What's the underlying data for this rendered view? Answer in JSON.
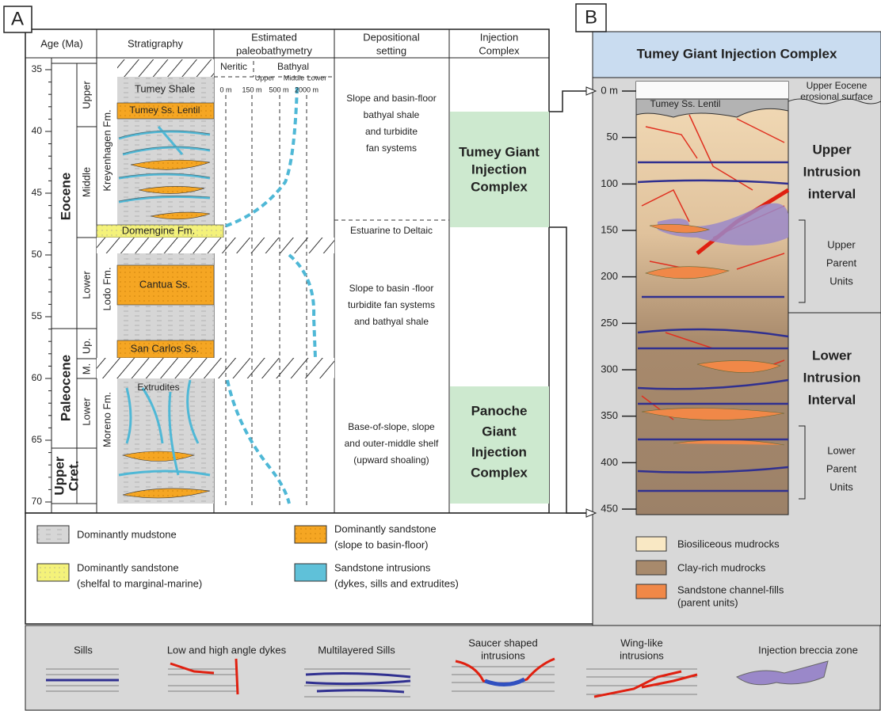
{
  "panel_a": {
    "label": "A",
    "headers": [
      [
        "Age (Ma)"
      ],
      [
        "Stratigraphy"
      ],
      [
        "Estimated",
        "paleobathymetry"
      ],
      [
        "Depositional",
        "setting"
      ],
      [
        "Injection",
        "Complex"
      ]
    ],
    "age_ticks": [
      35,
      40,
      45,
      50,
      55,
      60,
      65,
      70
    ],
    "epochs": [
      [
        "Eocene"
      ],
      [
        "Paleocene"
      ],
      [
        "Upper",
        "Cret."
      ]
    ],
    "sub_epochs": [
      "Upper",
      "Middle",
      "Lower",
      "Up.",
      "M.",
      "Lower"
    ],
    "formations": [
      "Kreyenhagen Fm.",
      "Lodo Fm.",
      "Moreno Fm."
    ],
    "units": [
      "Tumey Shale",
      "Tumey Ss. Lentil",
      "Domengine Fm.",
      "Cantua Ss.",
      "San Carlos Ss.",
      "Extrudites"
    ],
    "bathymetry": {
      "zones": [
        "Neritic",
        "Bathyal"
      ],
      "subzones": [
        "Upper",
        "Middle",
        "Lower"
      ],
      "depths": [
        "0 m",
        "150 m",
        "500 m",
        "2000 m"
      ]
    },
    "depositional": [
      [
        "Slope and basin-floor",
        "bathyal shale",
        "and turbidite",
        "fan systems"
      ],
      [
        "Estuarine to Deltaic"
      ],
      [
        "Slope to basin -floor",
        "turbidite fan systems",
        "and bathyal shale"
      ],
      [
        "Base-of-slope, slope",
        "and outer-middle shelf",
        "(upward shoaling)"
      ]
    ],
    "injection": [
      [
        "Tumey Giant",
        "Injection",
        "Complex"
      ],
      [
        "Panoche",
        "Giant",
        "Injection",
        "Complex"
      ]
    ],
    "legend": [
      [
        "Dominantly mudstone"
      ],
      [
        "Dominantly sandstone",
        "(slope to basin-floor)"
      ],
      [
        "Dominantly sandstone",
        "(shelfal to marginal-marine)"
      ],
      [
        "Sandstone intrusions",
        "(dykes, sills and extrudites)"
      ]
    ]
  },
  "panel_b": {
    "label": "B",
    "title": "Tumey Giant Injection Complex",
    "depth_ticks": [
      {
        "value": 0,
        "label": "0 m"
      },
      50,
      100,
      150,
      200,
      250,
      300,
      350,
      400,
      450
    ],
    "unit": "Tumey Ss. Lentil",
    "surface": [
      "Upper Eocene",
      "erosional surface"
    ],
    "intervals": [
      [
        "Upper",
        "Intrusion",
        "interval"
      ],
      [
        "Lower",
        "Intrusion",
        "Interval"
      ]
    ],
    "parent_units": [
      [
        "Upper",
        "Parent",
        "Units"
      ],
      [
        "Lower",
        "Parent",
        "Units"
      ]
    ],
    "legend": [
      [
        "Biosiliceous mudrocks"
      ],
      [
        "Clay-rich mudrocks"
      ],
      [
        "Sandstone channel-fills",
        "(parent units)"
      ]
    ]
  },
  "intrusion_types": [
    [
      "Sills"
    ],
    [
      "Low and high angle dykes"
    ],
    [
      "Multilayered Sills"
    ],
    [
      "Saucer shaped",
      "intrusions"
    ],
    [
      "Wing-like",
      "intrusions"
    ],
    [
      "Injection breccia zone"
    ]
  ]
}
